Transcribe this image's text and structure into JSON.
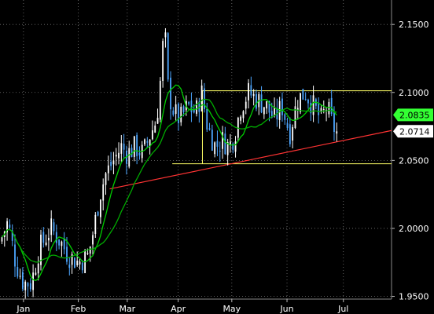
{
  "chart_data": {
    "type": "candlestick",
    "title": "",
    "xlabel": "",
    "ylabel": "",
    "ylim": [
      1.948,
      2.168
    ],
    "y_ticks": [
      1.95,
      2.0,
      2.05,
      2.1,
      2.15
    ],
    "y_tick_labels": [
      "1.9500",
      "2.0000",
      "2.0500",
      "2.1000",
      "2.1500"
    ],
    "x_ticks": [
      {
        "label": "Jan",
        "pos": 0.06
      },
      {
        "label": "Feb",
        "pos": 0.2
      },
      {
        "label": "Mar",
        "pos": 0.325
      },
      {
        "label": "Apr",
        "pos": 0.455
      },
      {
        "label": "May",
        "pos": 0.592
      },
      {
        "label": "Jun",
        "pos": 0.733
      },
      {
        "label": "Jul",
        "pos": 0.877
      }
    ],
    "grid": true,
    "last_price": 2.0714,
    "last_price_label": "2.0714",
    "ma_value": 2.0835,
    "ma_value_label": "2.0835",
    "colors": {
      "background": "#000000",
      "up_candle": "#ffffff",
      "down_candle": "#4da6ff",
      "moving_average_fast": "#00cc00",
      "moving_average_slow": "#00aa00",
      "range_lines": "#ffff66",
      "trend_line": "#ff3333",
      "ma_flag": "#33ff33",
      "price_flag": "#ffffff"
    },
    "range_box": {
      "top": 2.1012,
      "bottom": 2.0475,
      "start": 0.517,
      "end": 1.0
    },
    "trend_line": {
      "start": {
        "t": 0.28,
        "price": 2.029
      },
      "end": {
        "t": 1.0,
        "price": 2.072
      }
    },
    "price_anchors": [
      [
        0.0,
        1.99
      ],
      [
        0.02,
        2.005
      ],
      [
        0.04,
        1.975
      ],
      [
        0.06,
        1.96
      ],
      [
        0.08,
        1.96
      ],
      [
        0.1,
        1.985
      ],
      [
        0.13,
        2.0
      ],
      [
        0.155,
        1.99
      ],
      [
        0.175,
        1.98
      ],
      [
        0.2,
        1.975
      ],
      [
        0.225,
        1.98
      ],
      [
        0.24,
        2.0
      ],
      [
        0.255,
        2.025
      ],
      [
        0.27,
        2.04
      ],
      [
        0.29,
        2.05
      ],
      [
        0.31,
        2.06
      ],
      [
        0.325,
        2.055
      ],
      [
        0.345,
        2.06
      ],
      [
        0.365,
        2.055
      ],
      [
        0.385,
        2.07
      ],
      [
        0.4,
        2.08
      ],
      [
        0.41,
        2.11
      ],
      [
        0.42,
        2.15
      ],
      [
        0.43,
        2.1
      ],
      [
        0.445,
        2.085
      ],
      [
        0.46,
        2.08
      ],
      [
        0.48,
        2.09
      ],
      [
        0.5,
        2.085
      ],
      [
        0.515,
        2.1
      ],
      [
        0.53,
        2.075
      ],
      [
        0.55,
        2.06
      ],
      [
        0.57,
        2.065
      ],
      [
        0.585,
        2.06
      ],
      [
        0.6,
        2.07
      ],
      [
        0.615,
        2.09
      ],
      [
        0.635,
        2.1
      ],
      [
        0.655,
        2.095
      ],
      [
        0.68,
        2.09
      ],
      [
        0.7,
        2.08
      ],
      [
        0.72,
        2.09
      ],
      [
        0.74,
        2.07
      ],
      [
        0.76,
        2.095
      ],
      [
        0.78,
        2.1
      ],
      [
        0.8,
        2.09
      ],
      [
        0.82,
        2.08
      ],
      [
        0.835,
        2.09
      ],
      [
        0.85,
        2.075
      ],
      [
        0.86,
        2.0714
      ]
    ],
    "candle_count": 130,
    "ma_fast_period": 8,
    "ma_slow_period": 20
  }
}
